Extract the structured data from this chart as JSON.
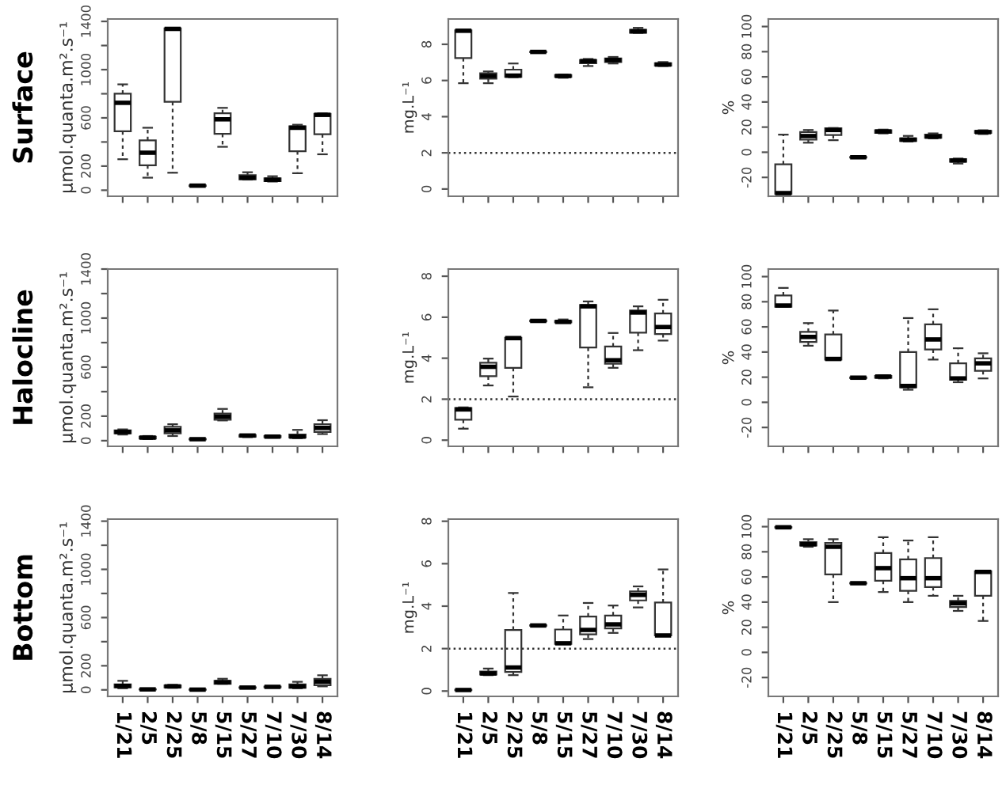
{
  "chart_data": [
    {
      "type": "box",
      "ylabel": "μmol.quanta.m².s⁻¹",
      "annotations": [
        "Surface"
      ],
      "tick_labels": "y",
      "categories": [
        null,
        null,
        null,
        null,
        null,
        null,
        null,
        null,
        null
      ],
      "ylim": [
        -50,
        1420
      ],
      "yticks": [
        0,
        200,
        {
          "value": 400,
          "label": null
        },
        600,
        {
          "value": 800,
          "label": null
        },
        1000,
        {
          "value": 1200,
          "label": null
        },
        1400
      ],
      "boxes": [
        {
          "low": 257,
          "q1": 489,
          "median": 725,
          "q3": 800,
          "high": 878
        },
        {
          "low": 104,
          "q1": 207,
          "median": 311,
          "q3": 414,
          "high": 518
        },
        {
          "low": 145,
          "q1": 733,
          "median": 1338,
          "q3": 1342,
          "high": 1345
        },
        {
          "low": 33,
          "q1": 35,
          "median": 38,
          "q3": 40,
          "high": 42
        },
        {
          "low": 360,
          "q1": 468,
          "median": 588,
          "q3": 638,
          "high": 683
        },
        {
          "low": 88,
          "q1": 91,
          "median": 104,
          "q3": 124,
          "high": 149
        },
        {
          "low": 72,
          "q1": 75,
          "median": 87,
          "q3": 99,
          "high": 116
        },
        {
          "low": 141,
          "q1": 323,
          "median": 518,
          "q3": 530,
          "high": 543
        },
        {
          "low": 298,
          "q1": 464,
          "median": 625,
          "q3": 634,
          "high": 638
        }
      ]
    },
    {
      "type": "box",
      "ylabel": "mg.L⁻¹",
      "tick_labels": "y",
      "categories": [
        null,
        null,
        null,
        null,
        null,
        null,
        null,
        null,
        null
      ],
      "ylim": [
        -0.4,
        9.4
      ],
      "yticks": [
        0,
        2,
        4,
        6,
        8
      ],
      "ref_lines": [
        {
          "axis": "y",
          "value": 2,
          "line_style": "dotted"
        }
      ],
      "boxes": [
        {
          "low": 5.85,
          "q1": 7.24,
          "median": 8.75,
          "q3": 8.77,
          "high": 8.78
        },
        {
          "low": 5.85,
          "q1": 6.1,
          "median": 6.25,
          "q3": 6.4,
          "high": 6.5
        },
        {
          "low": 6.18,
          "q1": 6.2,
          "median": 6.27,
          "q3": 6.6,
          "high": 6.94
        },
        {
          "low": 7.55,
          "q1": 7.57,
          "median": 7.58,
          "q3": 7.59,
          "high": 7.6
        },
        {
          "low": 6.15,
          "q1": 6.2,
          "median": 6.25,
          "q3": 6.3,
          "high": 6.33
        },
        {
          "low": 6.8,
          "q1": 6.96,
          "median": 7.07,
          "q3": 7.13,
          "high": 7.19
        },
        {
          "low": 6.94,
          "q1": 7.02,
          "median": 7.13,
          "q3": 7.22,
          "high": 7.3
        },
        {
          "low": 8.63,
          "q1": 8.64,
          "median": 8.72,
          "q3": 8.8,
          "high": 8.91
        },
        {
          "low": 6.8,
          "q1": 6.82,
          "median": 6.88,
          "q3": 6.96,
          "high": 7.02
        }
      ]
    },
    {
      "type": "box",
      "ylabel": "%",
      "tick_labels": "y",
      "categories": [
        null,
        null,
        null,
        null,
        null,
        null,
        null,
        null,
        null
      ],
      "ylim": [
        -35,
        106
      ],
      "yticks": [
        -20,
        0,
        20,
        40,
        60,
        80,
        100
      ],
      "boxes": [
        {
          "low": -33,
          "q1": -33,
          "median": -32.5,
          "q3": -9.6,
          "high": 14
        },
        {
          "low": 7.6,
          "q1": 10,
          "median": 12.9,
          "q3": 16,
          "high": 17.7
        },
        {
          "low": 9.6,
          "q1": 13.7,
          "median": 17.7,
          "q3": 19,
          "high": 19.3
        },
        {
          "low": -4.5,
          "q1": -4.2,
          "median": -4,
          "q3": -3.8,
          "high": -3.5
        },
        {
          "low": 15,
          "q1": 15.5,
          "median": 16.5,
          "q3": 17.5,
          "high": 18
        },
        {
          "low": 8.5,
          "q1": 9,
          "median": 10,
          "q3": 11,
          "high": 13
        },
        {
          "low": 11,
          "q1": 11.5,
          "median": 12.5,
          "q3": 14,
          "high": 15
        },
        {
          "low": -9,
          "q1": -7.5,
          "median": -6.5,
          "q3": -5.5,
          "high": -5
        },
        {
          "low": 14.5,
          "q1": 15.5,
          "median": 16,
          "q3": 17,
          "high": 17.5
        }
      ]
    },
    {
      "type": "box",
      "ylabel": "μmol.quanta.m².s⁻¹",
      "annotations": [
        "Halocline"
      ],
      "tick_labels": "y",
      "categories": [
        null,
        null,
        null,
        null,
        null,
        null,
        null,
        null,
        null
      ],
      "ylim": [
        -46,
        1400
      ],
      "yticks": [
        0,
        200,
        {
          "value": 400,
          "label": null
        },
        600,
        {
          "value": 800,
          "label": null
        },
        1000,
        {
          "value": 1200,
          "label": null
        },
        1400
      ],
      "boxes": [
        {
          "low": 50,
          "q1": 59,
          "median": 71,
          "q3": 84,
          "high": 92
        },
        {
          "low": 13,
          "q1": 17,
          "median": 25,
          "q3": 33,
          "high": 38
        },
        {
          "low": 38,
          "q1": 59,
          "median": 84,
          "q3": 113,
          "high": 134
        },
        {
          "low": 8,
          "q1": 10,
          "median": 12,
          "q3": 14,
          "high": 16
        },
        {
          "low": 165,
          "q1": 171,
          "median": 196,
          "q3": 221,
          "high": 259
        },
        {
          "low": 29,
          "q1": 33,
          "median": 42,
          "q3": 46,
          "high": 50
        },
        {
          "low": 25,
          "q1": 29,
          "median": 33,
          "q3": 38,
          "high": 42
        },
        {
          "low": 21,
          "q1": 25,
          "median": 33,
          "q3": 50,
          "high": 88
        },
        {
          "low": 54,
          "q1": 71,
          "median": 104,
          "q3": 134,
          "high": 167
        }
      ]
    },
    {
      "type": "box",
      "ylabel": "mg.L⁻¹",
      "tick_labels": "y",
      "categories": [
        null,
        null,
        null,
        null,
        null,
        null,
        null,
        null,
        null
      ],
      "ylim": [
        -0.3,
        8.35
      ],
      "yticks": [
        0,
        2,
        4,
        6,
        8
      ],
      "ref_lines": [
        {
          "axis": "y",
          "value": 2,
          "line_style": "dotted"
        }
      ],
      "boxes": [
        {
          "low": 0.56,
          "q1": 1.0,
          "median": 1.5,
          "q3": 1.57,
          "high": 1.6
        },
        {
          "low": 2.67,
          "q1": 3.12,
          "median": 3.58,
          "q3": 3.78,
          "high": 3.98
        },
        {
          "low": 2.13,
          "q1": 3.53,
          "median": 4.98,
          "q3": 5.0,
          "high": 5.02
        },
        {
          "low": 5.78,
          "q1": 5.8,
          "median": 5.82,
          "q3": 5.84,
          "high": 5.85
        },
        {
          "low": 5.74,
          "q1": 5.75,
          "median": 5.77,
          "q3": 5.82,
          "high": 5.89
        },
        {
          "low": 2.58,
          "q1": 4.52,
          "median": 6.53,
          "q3": 6.6,
          "high": 6.77
        },
        {
          "low": 3.53,
          "q1": 3.73,
          "median": 3.9,
          "q3": 4.57,
          "high": 5.23
        },
        {
          "low": 4.39,
          "q1": 5.25,
          "median": 6.23,
          "q3": 6.33,
          "high": 6.53
        },
        {
          "low": 4.86,
          "q1": 5.18,
          "median": 5.52,
          "q3": 6.18,
          "high": 6.85
        }
      ]
    },
    {
      "type": "box",
      "ylabel": "%",
      "tick_labels": "y",
      "categories": [
        null,
        null,
        null,
        null,
        null,
        null,
        null,
        null,
        null
      ],
      "ylim": [
        -35,
        106
      ],
      "yticks": [
        -20,
        0,
        20,
        40,
        60,
        80,
        100
      ],
      "boxes": [
        {
          "low": 76,
          "q1": 76,
          "median": 77,
          "q3": 85,
          "high": 91
        },
        {
          "low": 45,
          "q1": 48,
          "median": 52,
          "q3": 56,
          "high": 63
        },
        {
          "low": 34,
          "q1": 34,
          "median": 34.5,
          "q3": 54,
          "high": 73
        },
        {
          "low": 19,
          "q1": 19.3,
          "median": 19.6,
          "q3": 19.8,
          "high": 20
        },
        {
          "low": 19,
          "q1": 19.5,
          "median": 20.5,
          "q3": 21,
          "high": 21.5
        },
        {
          "low": 10,
          "q1": 12,
          "median": 13,
          "q3": 40,
          "high": 67
        },
        {
          "low": 34,
          "q1": 42,
          "median": 50,
          "q3": 62,
          "high": 74
        },
        {
          "low": 16,
          "q1": 18,
          "median": 19,
          "q3": 31,
          "high": 43
        },
        {
          "low": 19,
          "q1": 25,
          "median": 31,
          "q3": 35,
          "high": 39
        }
      ]
    },
    {
      "type": "box",
      "ylabel": "μmol.quanta.m².s⁻¹",
      "annotations": [
        "Bottom"
      ],
      "categories": [
        "1/21",
        "2/5",
        "2/25",
        "5/8",
        "5/15",
        "5/27",
        "7/10",
        "7/30",
        "8/14"
      ],
      "ylim": [
        -54,
        1417
      ],
      "yticks": [
        0,
        200,
        {
          "value": 400,
          "label": null
        },
        600,
        {
          "value": 800,
          "label": null
        },
        1000,
        {
          "value": 1200,
          "label": null
        },
        1400
      ],
      "boxes": [
        {
          "low": 13,
          "q1": 21,
          "median": 33,
          "q3": 46,
          "high": 75
        },
        {
          "low": 2,
          "q1": 3,
          "median": 4,
          "q3": 5,
          "high": 6
        },
        {
          "low": 17,
          "q1": 21,
          "median": 29,
          "q3": 38,
          "high": 42
        },
        {
          "low": 0,
          "q1": 1,
          "median": 2,
          "q3": 3,
          "high": 4
        },
        {
          "low": 50,
          "q1": 50,
          "median": 63,
          "q3": 75,
          "high": 92
        },
        {
          "low": 15,
          "q1": 17,
          "median": 19,
          "q3": 21,
          "high": 23
        },
        {
          "low": 19,
          "q1": 22,
          "median": 25,
          "q3": 27,
          "high": 30
        },
        {
          "low": 13,
          "q1": 17,
          "median": 29,
          "q3": 46,
          "high": 67
        },
        {
          "low": 29,
          "q1": 38,
          "median": 67,
          "q3": 92,
          "high": 121
        }
      ]
    },
    {
      "type": "box",
      "ylabel": "mg.L⁻¹",
      "categories": [
        "1/21",
        "2/5",
        "2/25",
        "5/8",
        "5/15",
        "5/27",
        "7/10",
        "7/30",
        "8/14"
      ],
      "ylim": [
        -0.25,
        8.1
      ],
      "yticks": [
        0,
        2,
        4,
        6,
        8
      ],
      "ref_lines": [
        {
          "axis": "y",
          "value": 2,
          "line_style": "dotted"
        }
      ],
      "boxes": [
        {
          "low": 0.03,
          "q1": 0.04,
          "median": 0.05,
          "q3": 0.06,
          "high": 0.07
        },
        {
          "low": 0.75,
          "q1": 0.78,
          "median": 0.83,
          "q3": 0.92,
          "high": 1.06
        },
        {
          "low": 0.75,
          "q1": 0.9,
          "median": 1.11,
          "q3": 2.88,
          "high": 4.62
        },
        {
          "low": 3.07,
          "q1": 3.08,
          "median": 3.09,
          "q3": 3.1,
          "high": 3.11
        },
        {
          "low": 2.22,
          "q1": 2.22,
          "median": 2.25,
          "q3": 2.9,
          "high": 3.56
        },
        {
          "low": 2.45,
          "q1": 2.67,
          "median": 2.88,
          "q3": 3.51,
          "high": 4.15
        },
        {
          "low": 2.74,
          "q1": 2.95,
          "median": 3.14,
          "q3": 3.56,
          "high": 4.03
        },
        {
          "low": 3.94,
          "q1": 4.27,
          "median": 4.53,
          "q3": 4.69,
          "high": 4.93
        },
        {
          "low": 2.6,
          "q1": 2.62,
          "median": 2.62,
          "q3": 4.17,
          "high": 5.73
        }
      ]
    },
    {
      "type": "box",
      "ylabel": "%",
      "categories": [
        "1/21",
        "2/5",
        "2/25",
        "5/8",
        "5/15",
        "5/27",
        "7/10",
        "7/30",
        "8/14"
      ],
      "ylim": [
        -35,
        106
      ],
      "yticks": [
        -20,
        0,
        20,
        40,
        60,
        80,
        100
      ],
      "boxes": [
        {
          "low": 99,
          "q1": 99.3,
          "median": 99.5,
          "q3": 99.7,
          "high": 100
        },
        {
          "low": 84,
          "q1": 85,
          "median": 86,
          "q3": 87.6,
          "high": 90
        },
        {
          "low": 40,
          "q1": 62,
          "median": 84,
          "q3": 87,
          "high": 90
        },
        {
          "low": 54.6,
          "q1": 54.8,
          "median": 55,
          "q3": 55.2,
          "high": 55.4
        },
        {
          "low": 48,
          "q1": 57,
          "median": 67,
          "q3": 79,
          "high": 91.6
        },
        {
          "low": 40,
          "q1": 49,
          "median": 59,
          "q3": 74,
          "high": 89
        },
        {
          "low": 45,
          "q1": 52,
          "median": 59,
          "q3": 75,
          "high": 91.6
        },
        {
          "low": 33,
          "q1": 36,
          "median": 39,
          "q3": 41,
          "high": 45
        },
        {
          "low": 25,
          "q1": 45,
          "median": 64,
          "q3": 64.5,
          "high": 65
        }
      ]
    }
  ]
}
